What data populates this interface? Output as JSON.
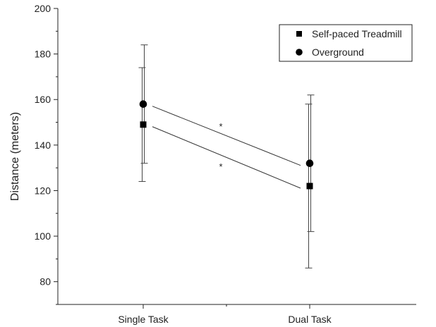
{
  "chart_data": {
    "type": "line",
    "title": "",
    "xlabel": "",
    "ylabel": "Distance (meters)",
    "categories": [
      "Single Task",
      "Dual Task"
    ],
    "ylim": [
      70,
      200
    ],
    "yticks": [
      80,
      100,
      120,
      140,
      160,
      180,
      200
    ],
    "legend_position": "top-right",
    "grid": false,
    "series": [
      {
        "name": "Self-paced Treadmill",
        "marker": "square",
        "values": [
          149,
          122
        ],
        "err_low": [
          124,
          86
        ],
        "err_high": [
          174,
          158
        ]
      },
      {
        "name": "Overground",
        "marker": "circle",
        "values": [
          158,
          132
        ],
        "err_low": [
          132,
          102
        ],
        "err_high": [
          184,
          162
        ]
      }
    ],
    "annotations": [
      "*",
      "*"
    ],
    "colors": {
      "marker": "#000000",
      "line": "#333333",
      "axis": "#222222"
    }
  }
}
